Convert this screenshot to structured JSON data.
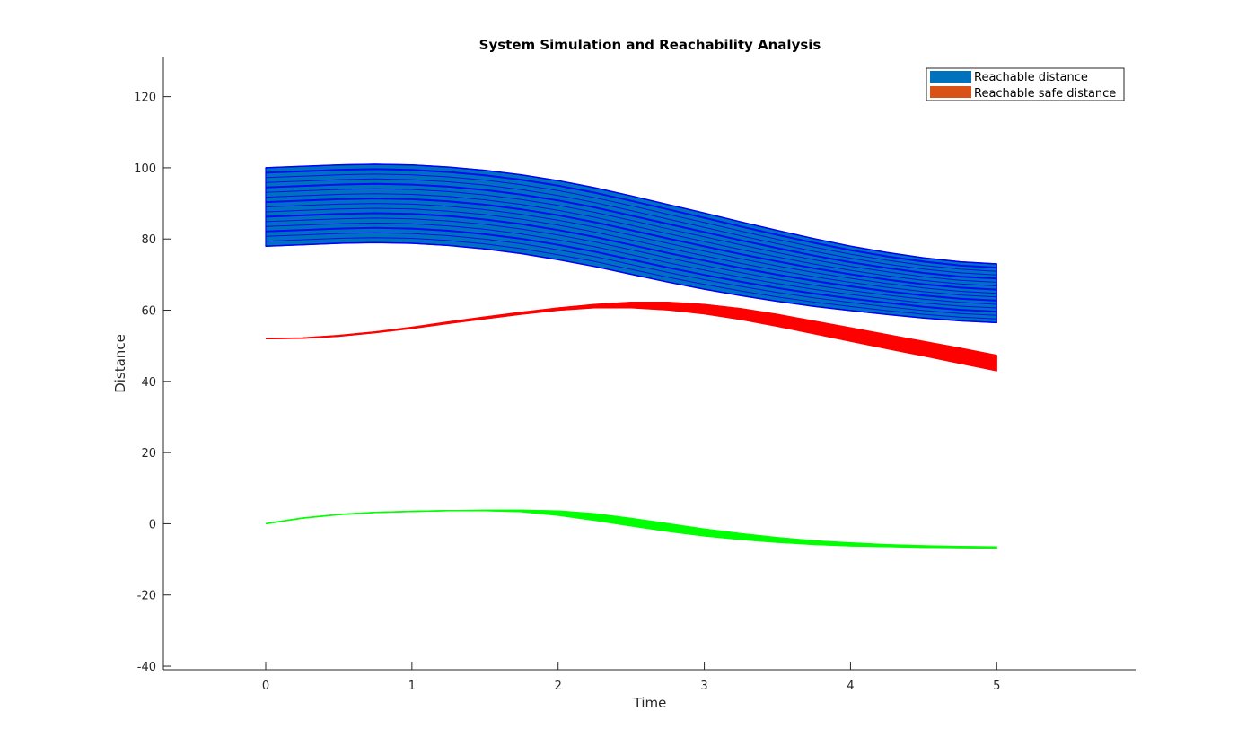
{
  "chart_data": {
    "type": "area",
    "title": "System Simulation and Reachability Analysis",
    "xlabel": "Time",
    "ylabel": "Distance",
    "xlim": [
      -0.7,
      5.95
    ],
    "ylim": [
      -41,
      131
    ],
    "xticks": [
      0,
      1,
      2,
      3,
      4,
      5
    ],
    "yticks": [
      -40,
      -20,
      0,
      20,
      40,
      60,
      80,
      100,
      120
    ],
    "grid": false,
    "legend_position": "top-right",
    "legend": [
      {
        "label": "Reachable distance",
        "color": "#0072BD"
      },
      {
        "label": "Reachable safe distance",
        "color": "#D95319"
      }
    ],
    "x": [
      0,
      0.25,
      0.5,
      0.75,
      1,
      1.25,
      1.5,
      1.75,
      2,
      2.25,
      2.5,
      2.75,
      3,
      3.25,
      3.5,
      3.75,
      4,
      4.25,
      4.5,
      4.75,
      5
    ],
    "series": [
      {
        "role": "reachable-distance-band",
        "fill": "#0072BD",
        "edge": "#0000FF",
        "upper": [
          100,
          100.4,
          100.8,
          101,
          100.8,
          100.2,
          99.3,
          98,
          96.4,
          94.4,
          92.1,
          89.7,
          87.3,
          84.8,
          82.4,
          80.1,
          78,
          76.2,
          74.7,
          73.6,
          73
        ],
        "lower": [
          78,
          78.4,
          78.8,
          79,
          78.8,
          78.2,
          77.2,
          75.9,
          74.2,
          72.3,
          70.1,
          67.9,
          65.9,
          64.1,
          62.5,
          61.1,
          59.9,
          58.8,
          57.8,
          57,
          56.5
        ]
      },
      {
        "role": "reachable-safe-distance-band",
        "fill": "#FF0000",
        "edge": "#FF0000",
        "upper": [
          52,
          52.2,
          52.9,
          53.9,
          55.2,
          56.7,
          58.1,
          59.4,
          60.6,
          61.6,
          62.2,
          62.2,
          61.6,
          60.4,
          58.8,
          56.9,
          55,
          53.1,
          51.2,
          49.3,
          47.3
        ],
        "lower": [
          52,
          52.1,
          52.7,
          53.7,
          54.9,
          56.3,
          57.6,
          58.9,
          60,
          60.7,
          60.7,
          60.1,
          59,
          57.4,
          55.5,
          53.4,
          51.3,
          49.2,
          47.2,
          45.1,
          43
        ]
      },
      {
        "role": "green-band",
        "fill": "#00FF00",
        "edge": "#00FF00",
        "upper": [
          0,
          1.6,
          2.6,
          3.2,
          3.5,
          3.7,
          3.8,
          3.8,
          3.6,
          2.8,
          1.5,
          0,
          -1.5,
          -2.8,
          -3.9,
          -4.8,
          -5.4,
          -5.9,
          -6.2,
          -6.4,
          -6.5
        ],
        "lower": [
          0,
          1.6,
          2.6,
          3.2,
          3.5,
          3.7,
          3.7,
          3.4,
          2.4,
          1.0,
          -0.6,
          -2.1,
          -3.4,
          -4.4,
          -5.2,
          -5.8,
          -6.2,
          -6.4,
          -6.6,
          -6.7,
          -6.8
        ]
      }
    ]
  }
}
